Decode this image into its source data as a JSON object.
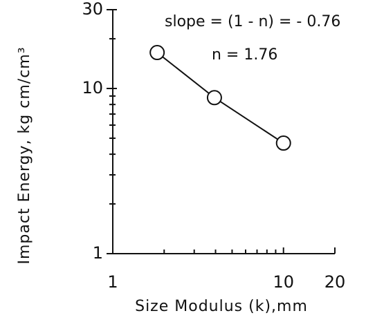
{
  "chart_data": {
    "type": "line",
    "x_label": "Size Modulus (k),mm",
    "y_label": "Impact Energy, kg cm/cm³",
    "annotations": [
      "slope = (1 - n) = - 0.76",
      "n = 1.76"
    ],
    "series": [
      {
        "color": "#111111",
        "x": [
          1.82,
          3.94,
          10
        ],
        "values": [
          16.5,
          8.8,
          4.67
        ]
      }
    ],
    "xlim": [
      1,
      20
    ],
    "ylim": [
      1,
      30
    ],
    "xticks": [
      1,
      10,
      20
    ],
    "yticks": [
      1,
      10,
      30
    ],
    "xticks_minor": [
      2,
      3,
      4,
      5,
      6,
      7,
      8,
      9
    ],
    "yticks_minor": [
      2,
      3,
      4,
      5,
      6,
      7,
      8,
      9,
      20
    ],
    "xscale": "log",
    "yscale": "log",
    "grid": false
  }
}
